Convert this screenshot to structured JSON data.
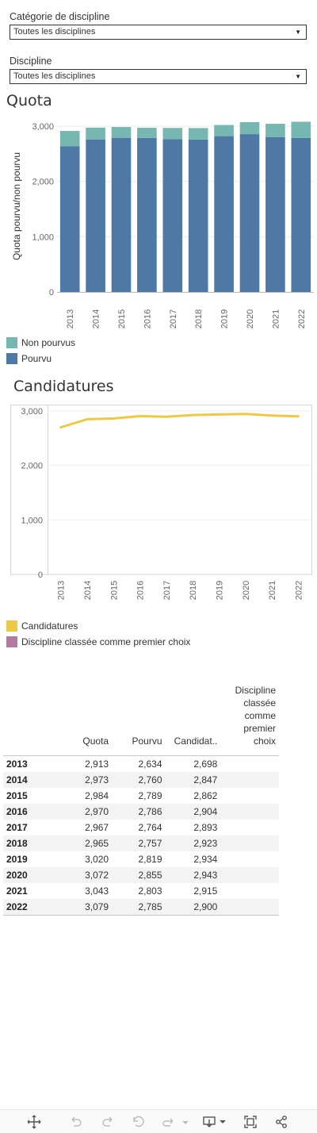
{
  "filters": [
    {
      "label": "Catégorie de discipline",
      "value": "Toutes les disciplines"
    },
    {
      "label": "Discipline",
      "value": "Toutes les disciplines"
    }
  ],
  "colors": {
    "pourvu": "#4e79a7",
    "non_pourvus": "#76b7b2",
    "candidatures": "#edc948",
    "premier_choix": "#b07aa1"
  },
  "chart_data": [
    {
      "type": "bar",
      "stacked": true,
      "title": "Quota",
      "ylabel": "Quota pourvu/non pourvu",
      "categories": [
        "2013",
        "2014",
        "2015",
        "2016",
        "2017",
        "2018",
        "2019",
        "2020",
        "2021",
        "2022"
      ],
      "series": [
        {
          "name": "Pourvu",
          "values": [
            2634,
            2760,
            2789,
            2786,
            2764,
            2757,
            2819,
            2855,
            2803,
            2785
          ]
        },
        {
          "name": "Non pourvus",
          "values": [
            279,
            213,
            195,
            184,
            203,
            208,
            201,
            217,
            240,
            294
          ]
        }
      ],
      "ylim": [
        0,
        3100
      ],
      "yticks": [
        "0",
        "1,000",
        "2,000",
        "3,000"
      ],
      "legend": [
        "Non pourvus",
        "Pourvu"
      ]
    },
    {
      "type": "line",
      "title": "Candidatures",
      "categories": [
        "2013",
        "2014",
        "2015",
        "2016",
        "2017",
        "2018",
        "2019",
        "2020",
        "2021",
        "2022"
      ],
      "series": [
        {
          "name": "Candidatures",
          "values": [
            2698,
            2847,
            2862,
            2904,
            2893,
            2923,
            2934,
            2943,
            2915,
            2900
          ]
        }
      ],
      "ylim": [
        0,
        3100
      ],
      "yticks": [
        "0",
        "1,000",
        "2,000",
        "3,000"
      ],
      "legend": [
        "Candidatures",
        "Discipline classée comme premier choix"
      ]
    },
    {
      "type": "table",
      "columns": [
        "",
        "Quota",
        "Pourvu",
        "Candidat..",
        "Discipline classée comme premier choix"
      ],
      "rows": [
        [
          "2013",
          "2,913",
          "2,634",
          "2,698",
          ""
        ],
        [
          "2014",
          "2,973",
          "2,760",
          "2,847",
          ""
        ],
        [
          "2015",
          "2,984",
          "2,789",
          "2,862",
          ""
        ],
        [
          "2016",
          "2,970",
          "2,786",
          "2,904",
          ""
        ],
        [
          "2017",
          "2,967",
          "2,764",
          "2,893",
          ""
        ],
        [
          "2018",
          "2,965",
          "2,757",
          "2,923",
          ""
        ],
        [
          "2019",
          "3,020",
          "2,819",
          "2,934",
          ""
        ],
        [
          "2020",
          "3,072",
          "2,855",
          "2,943",
          ""
        ],
        [
          "2021",
          "3,043",
          "2,803",
          "2,915",
          ""
        ],
        [
          "2022",
          "3,079",
          "2,785",
          "2,900",
          ""
        ]
      ]
    }
  ],
  "toolbar": [
    "move-icon",
    "undo-icon",
    "redo-icon",
    "revert-icon",
    "forward-icon",
    "dropdown-icon",
    "download-icon",
    "fullscreen-icon",
    "share-icon"
  ]
}
